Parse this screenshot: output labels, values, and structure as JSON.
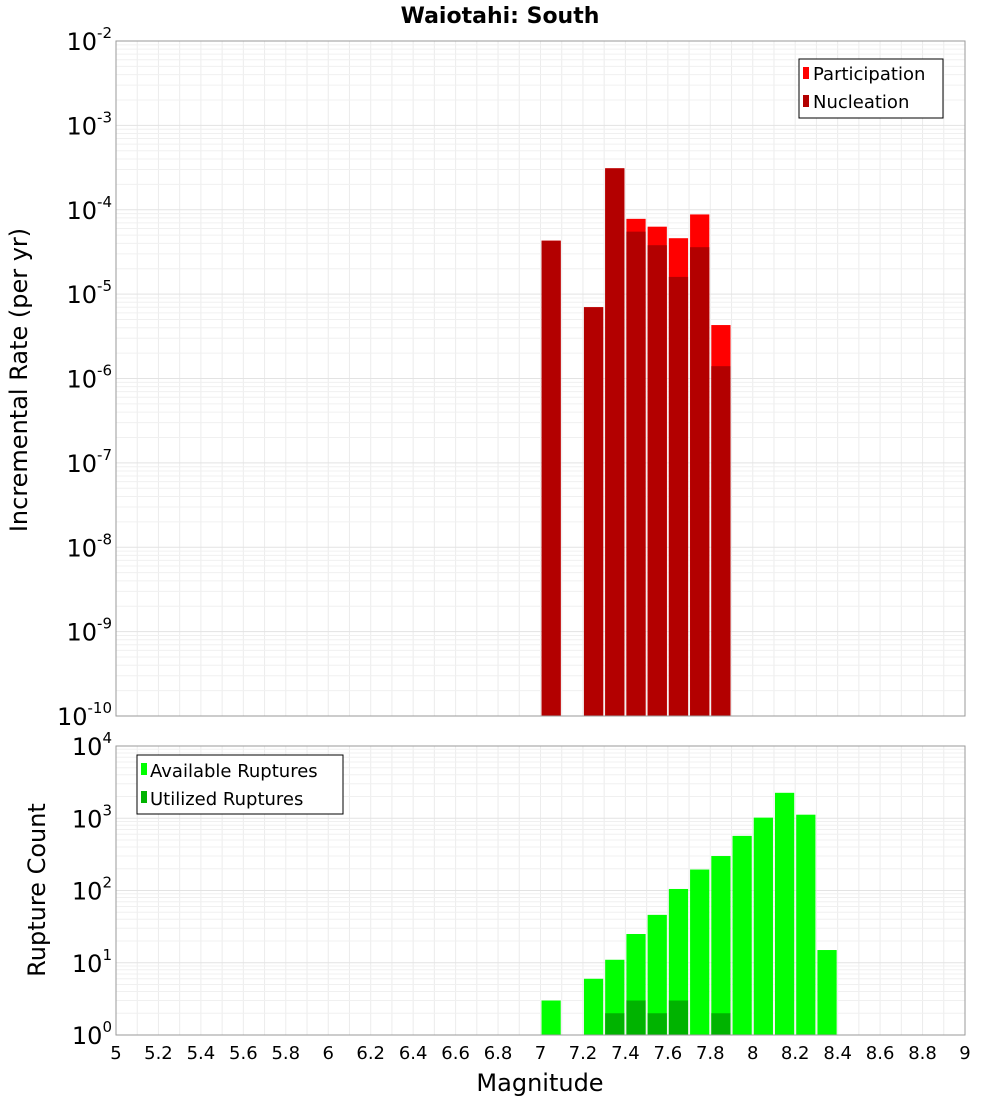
{
  "chart_data": {
    "title": "Waiotahi: South",
    "xlabel": "Magnitude",
    "x_ticks": [
      "5",
      "5.2",
      "5.4",
      "5.6",
      "5.8",
      "6",
      "6.2",
      "6.4",
      "6.6",
      "6.8",
      "7",
      "7.2",
      "7.4",
      "7.6",
      "7.8",
      "8",
      "8.2",
      "8.4",
      "8.6",
      "8.8",
      "9"
    ],
    "xlim": [
      5,
      9
    ],
    "bin_width": 0.1,
    "panels": [
      {
        "type": "bar",
        "scale": "log",
        "ylabel": "Incremental Rate (per yr)",
        "ylim_exp": [
          -10,
          -2
        ],
        "y_tick_base": "10",
        "y_tick_exponents": [
          "-10",
          "-9",
          "-8",
          "-7",
          "-6",
          "-5",
          "-4",
          "-3",
          "-2"
        ],
        "legend": {
          "position": "top-right",
          "entries": [
            {
              "label": "Participation",
              "color": "#ff0000"
            },
            {
              "label": "Nucleation",
              "color": "#b30000"
            }
          ]
        },
        "series": [
          {
            "name": "Participation",
            "color": "#ff0000",
            "x": [
              7.05,
              7.25,
              7.35,
              7.45,
              7.55,
              7.65,
              7.75,
              7.85
            ],
            "values": [
              4.3e-05,
              7e-06,
              0.00031,
              7.8e-05,
              6.3e-05,
              4.6e-05,
              8.8e-05,
              4.3e-06
            ]
          },
          {
            "name": "Nucleation",
            "color": "#b30000",
            "x": [
              7.05,
              7.25,
              7.35,
              7.45,
              7.55,
              7.65,
              7.75,
              7.85
            ],
            "values": [
              4.3e-05,
              7e-06,
              0.00031,
              5.5e-05,
              3.8e-05,
              1.6e-05,
              3.6e-05,
              1.4e-06
            ]
          }
        ]
      },
      {
        "type": "bar",
        "scale": "log",
        "ylabel": "Rupture Count",
        "ylim_exp": [
          0,
          4
        ],
        "y_tick_base": "10",
        "y_tick_exponents": [
          "0",
          "1",
          "2",
          "3",
          "4"
        ],
        "legend": {
          "position": "top-left",
          "entries": [
            {
              "label": "Available Ruptures",
              "color": "#00ff00"
            },
            {
              "label": "Utilized Ruptures",
              "color": "#00b300"
            }
          ]
        },
        "series": [
          {
            "name": "Available Ruptures",
            "color": "#00ff00",
            "x": [
              7.05,
              7.25,
              7.35,
              7.45,
              7.55,
              7.65,
              7.75,
              7.85,
              7.95,
              8.05,
              8.15,
              8.25,
              8.35
            ],
            "values": [
              3,
              6,
              11,
              25,
              46,
              105,
              195,
              300,
              570,
              1020,
              2250,
              1120,
              15
            ]
          },
          {
            "name": "Utilized Ruptures",
            "color": "#00b300",
            "x": [
              7.05,
              7.25,
              7.35,
              7.45,
              7.55,
              7.65,
              7.75,
              7.85
            ],
            "values": [
              1,
              1,
              2,
              3,
              2,
              3,
              1,
              2
            ]
          }
        ]
      }
    ]
  }
}
